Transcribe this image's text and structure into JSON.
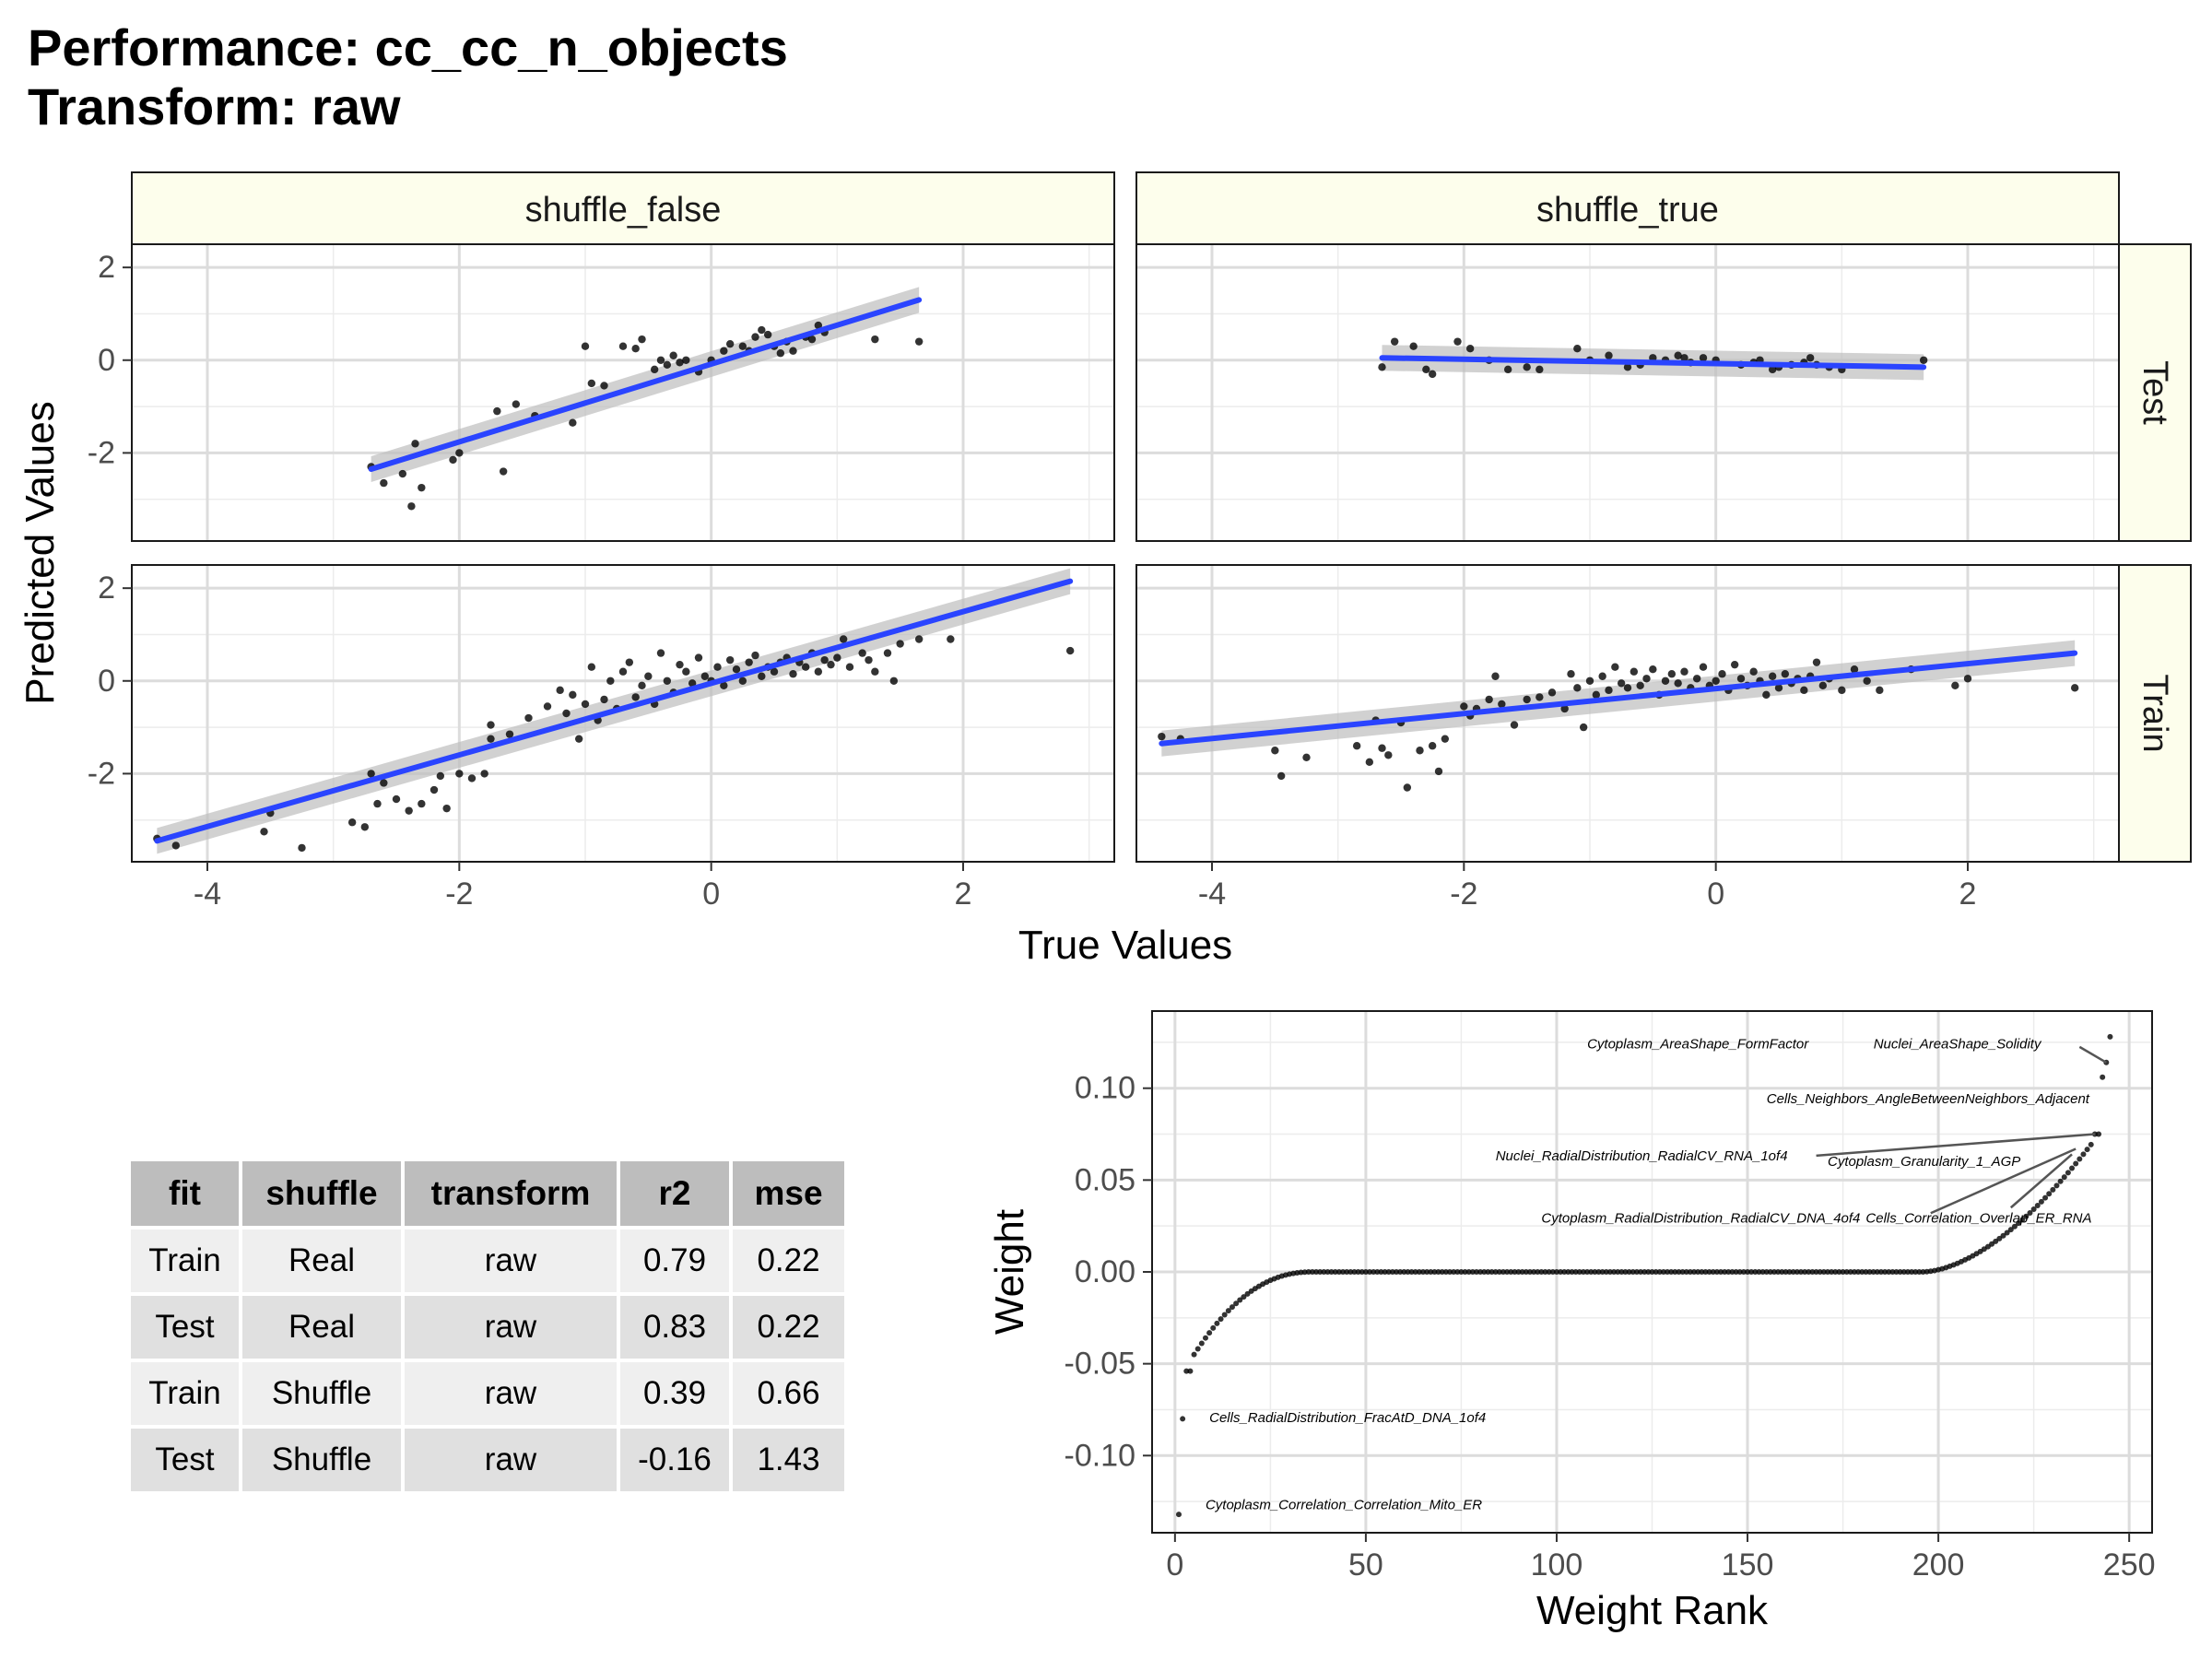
{
  "title": {
    "line1": "Performance: cc_cc_n_objects",
    "line2": "Transform: raw"
  },
  "facet_plot": {
    "xlabel": "True Values",
    "ylabel": "Predicted Values",
    "col_labels": [
      "shuffle_false",
      "shuffle_true"
    ],
    "row_labels": [
      "Test",
      "Train"
    ],
    "x_ticks": [
      -4,
      -2,
      0,
      2
    ],
    "y_ticks": [
      -2,
      0,
      2
    ],
    "strip_fill": "#fdfeec",
    "line_color": "#2a44ff"
  },
  "metrics_table": {
    "columns": [
      "fit",
      "shuffle",
      "transform",
      "r2",
      "mse"
    ],
    "rows": [
      [
        "Train",
        "Real",
        "raw",
        "0.79",
        "0.22"
      ],
      [
        "Test",
        "Real",
        "raw",
        "0.83",
        "0.22"
      ],
      [
        "Train",
        "Shuffle",
        "raw",
        "0.39",
        "0.66"
      ],
      [
        "Test",
        "Shuffle",
        "raw",
        "-0.16",
        "1.43"
      ]
    ]
  },
  "weight_plot": {
    "xlabel": "Weight Rank",
    "ylabel": "Weight",
    "x_ticks": [
      0,
      50,
      100,
      150,
      200,
      250
    ],
    "y_ticks": [
      "-0.10",
      "-0.05",
      "0.00",
      "0.05",
      "0.10"
    ],
    "labels": [
      "Cytoplasm_AreaShape_FormFactor",
      "Nuclei_AreaShape_Solidity",
      "Cells_Neighbors_AngleBetweenNeighbors_Adjacent",
      "Nuclei_RadialDistribution_RadialCV_RNA_1of4",
      "Cytoplasm_Granularity_1_AGP",
      "Cytoplasm_RadialDistribution_RadialCV_DNA_4of4",
      "Cells_Correlation_Overlap_ER_RNA",
      "Cells_RadialDistribution_FracAtD_DNA_1of4",
      "Cytoplasm_Correlation_Correlation_Mito_ER"
    ]
  },
  "chart_data": [
    {
      "type": "scatter",
      "title": "shuffle_false / Test",
      "xlabel": "True Values",
      "ylabel": "Predicted Values",
      "xlim": [
        -4.6,
        3.2
      ],
      "ylim": [
        -3.9,
        2.5
      ],
      "fit_line": {
        "x": [
          -2.7,
          1.65
        ],
        "y": [
          -2.35,
          1.3
        ]
      },
      "points": [
        [
          -2.7,
          -2.3
        ],
        [
          -2.6,
          -2.65
        ],
        [
          -2.45,
          -2.45
        ],
        [
          -2.38,
          -3.15
        ],
        [
          -2.3,
          -2.75
        ],
        [
          -2.35,
          -1.8
        ],
        [
          -2.05,
          -2.15
        ],
        [
          -2.0,
          -2.0
        ],
        [
          -1.65,
          -2.4
        ],
        [
          -1.7,
          -1.1
        ],
        [
          -1.55,
          -0.95
        ],
        [
          -1.4,
          -1.2
        ],
        [
          -1.1,
          -1.35
        ],
        [
          -1.0,
          0.3
        ],
        [
          -0.95,
          -0.5
        ],
        [
          -0.85,
          -0.55
        ],
        [
          -0.7,
          0.3
        ],
        [
          -0.6,
          0.25
        ],
        [
          -0.55,
          0.45
        ],
        [
          -0.45,
          -0.2
        ],
        [
          -0.4,
          0.0
        ],
        [
          -0.35,
          -0.1
        ],
        [
          -0.3,
          0.1
        ],
        [
          -0.25,
          -0.05
        ],
        [
          -0.2,
          0.0
        ],
        [
          -0.1,
          -0.25
        ],
        [
          0.0,
          0.0
        ],
        [
          0.1,
          0.2
        ],
        [
          0.15,
          0.35
        ],
        [
          0.25,
          0.3
        ],
        [
          0.3,
          0.2
        ],
        [
          0.35,
          0.5
        ],
        [
          0.4,
          0.65
        ],
        [
          0.45,
          0.55
        ],
        [
          0.5,
          0.3
        ],
        [
          0.55,
          0.15
        ],
        [
          0.6,
          0.4
        ],
        [
          0.65,
          0.2
        ],
        [
          0.75,
          0.5
        ],
        [
          0.8,
          0.45
        ],
        [
          0.85,
          0.75
        ],
        [
          0.9,
          0.6
        ],
        [
          1.3,
          0.45
        ],
        [
          1.65,
          0.4
        ]
      ]
    },
    {
      "type": "scatter",
      "title": "shuffle_true / Test",
      "xlabel": "True Values",
      "ylabel": "Predicted Values",
      "xlim": [
        -4.6,
        3.2
      ],
      "ylim": [
        -3.9,
        2.5
      ],
      "fit_line": {
        "x": [
          -2.65,
          1.65
        ],
        "y": [
          0.05,
          -0.15
        ]
      },
      "points": [
        [
          -2.65,
          -0.15
        ],
        [
          -2.55,
          0.4
        ],
        [
          -2.4,
          0.3
        ],
        [
          -2.3,
          -0.2
        ],
        [
          -2.25,
          -0.3
        ],
        [
          -2.05,
          0.4
        ],
        [
          -1.95,
          0.25
        ],
        [
          -1.8,
          0.0
        ],
        [
          -1.65,
          -0.2
        ],
        [
          -1.5,
          -0.15
        ],
        [
          -1.4,
          -0.2
        ],
        [
          -1.1,
          0.25
        ],
        [
          -1.0,
          0.0
        ],
        [
          -0.85,
          0.1
        ],
        [
          -0.7,
          -0.15
        ],
        [
          -0.6,
          -0.1
        ],
        [
          -0.5,
          0.05
        ],
        [
          -0.4,
          0.0
        ],
        [
          -0.3,
          0.1
        ],
        [
          -0.25,
          0.05
        ],
        [
          -0.2,
          -0.05
        ],
        [
          -0.1,
          0.05
        ],
        [
          0.0,
          0.0
        ],
        [
          0.2,
          -0.1
        ],
        [
          0.3,
          -0.05
        ],
        [
          0.35,
          0.0
        ],
        [
          0.45,
          -0.2
        ],
        [
          0.5,
          -0.15
        ],
        [
          0.6,
          -0.1
        ],
        [
          0.7,
          -0.05
        ],
        [
          0.75,
          0.05
        ],
        [
          0.8,
          -0.1
        ],
        [
          0.9,
          -0.15
        ],
        [
          1.0,
          -0.2
        ],
        [
          1.65,
          0.0
        ]
      ]
    },
    {
      "type": "scatter",
      "title": "shuffle_false / Train",
      "xlabel": "True Values",
      "ylabel": "Predicted Values",
      "xlim": [
        -4.6,
        3.2
      ],
      "ylim": [
        -3.9,
        2.5
      ],
      "fit_line": {
        "x": [
          -4.4,
          2.85
        ],
        "y": [
          -3.45,
          2.15
        ]
      },
      "points": [
        [
          -4.4,
          -3.4
        ],
        [
          -4.25,
          -3.55
        ],
        [
          -3.5,
          -2.85
        ],
        [
          -3.55,
          -3.25
        ],
        [
          -3.25,
          -3.6
        ],
        [
          -2.85,
          -3.05
        ],
        [
          -2.75,
          -3.15
        ],
        [
          -2.7,
          -2.0
        ],
        [
          -2.65,
          -2.65
        ],
        [
          -2.6,
          -2.2
        ],
        [
          -2.5,
          -2.55
        ],
        [
          -2.4,
          -2.8
        ],
        [
          -2.3,
          -2.65
        ],
        [
          -2.2,
          -2.35
        ],
        [
          -2.15,
          -2.05
        ],
        [
          -2.1,
          -2.75
        ],
        [
          -2.0,
          -2.0
        ],
        [
          -1.9,
          -2.1
        ],
        [
          -1.8,
          -2.0
        ],
        [
          -1.75,
          -0.95
        ],
        [
          -1.75,
          -1.25
        ],
        [
          -1.6,
          -1.15
        ],
        [
          -1.45,
          -0.8
        ],
        [
          -1.3,
          -0.55
        ],
        [
          -1.2,
          -0.2
        ],
        [
          -1.15,
          -0.7
        ],
        [
          -1.1,
          -0.3
        ],
        [
          -1.05,
          -1.25
        ],
        [
          -1.0,
          -0.5
        ],
        [
          -0.95,
          0.3
        ],
        [
          -0.9,
          -0.85
        ],
        [
          -0.85,
          -0.4
        ],
        [
          -0.8,
          0.0
        ],
        [
          -0.75,
          -0.6
        ],
        [
          -0.7,
          0.2
        ],
        [
          -0.65,
          0.4
        ],
        [
          -0.6,
          -0.35
        ],
        [
          -0.55,
          -0.1
        ],
        [
          -0.5,
          0.1
        ],
        [
          -0.45,
          -0.5
        ],
        [
          -0.4,
          0.6
        ],
        [
          -0.35,
          0.0
        ],
        [
          -0.3,
          -0.25
        ],
        [
          -0.25,
          0.35
        ],
        [
          -0.2,
          0.2
        ],
        [
          -0.15,
          -0.05
        ],
        [
          -0.1,
          0.5
        ],
        [
          -0.05,
          0.1
        ],
        [
          0.0,
          0.0
        ],
        [
          0.05,
          0.3
        ],
        [
          0.1,
          -0.1
        ],
        [
          0.15,
          0.45
        ],
        [
          0.2,
          0.25
        ],
        [
          0.25,
          0.0
        ],
        [
          0.3,
          0.4
        ],
        [
          0.35,
          0.55
        ],
        [
          0.4,
          0.1
        ],
        [
          0.45,
          0.3
        ],
        [
          0.5,
          0.2
        ],
        [
          0.55,
          0.4
        ],
        [
          0.6,
          0.5
        ],
        [
          0.65,
          0.15
        ],
        [
          0.7,
          0.4
        ],
        [
          0.75,
          0.3
        ],
        [
          0.8,
          0.6
        ],
        [
          0.85,
          0.2
        ],
        [
          0.9,
          0.45
        ],
        [
          0.95,
          0.35
        ],
        [
          1.0,
          0.5
        ],
        [
          1.05,
          0.9
        ],
        [
          1.1,
          0.3
        ],
        [
          1.2,
          0.6
        ],
        [
          1.25,
          0.45
        ],
        [
          1.3,
          0.2
        ],
        [
          1.4,
          0.6
        ],
        [
          1.45,
          0.0
        ],
        [
          1.5,
          0.8
        ],
        [
          1.65,
          0.9
        ],
        [
          1.9,
          0.9
        ],
        [
          2.85,
          0.65
        ]
      ]
    },
    {
      "type": "scatter",
      "title": "shuffle_true / Train",
      "xlabel": "True Values",
      "ylabel": "Predicted Values",
      "xlim": [
        -4.6,
        3.2
      ],
      "ylim": [
        -3.9,
        2.5
      ],
      "fit_line": {
        "x": [
          -4.4,
          2.85
        ],
        "y": [
          -1.35,
          0.6
        ]
      },
      "points": [
        [
          -4.4,
          -1.2
        ],
        [
          -4.25,
          -1.25
        ],
        [
          -3.5,
          -1.5
        ],
        [
          -3.45,
          -2.05
        ],
        [
          -3.25,
          -1.65
        ],
        [
          -2.85,
          -1.4
        ],
        [
          -2.75,
          -1.75
        ],
        [
          -2.7,
          -0.85
        ],
        [
          -2.65,
          -1.45
        ],
        [
          -2.6,
          -1.6
        ],
        [
          -2.5,
          -0.9
        ],
        [
          -2.45,
          -2.3
        ],
        [
          -2.35,
          -1.5
        ],
        [
          -2.25,
          -1.4
        ],
        [
          -2.2,
          -1.95
        ],
        [
          -2.15,
          -1.25
        ],
        [
          -2.0,
          -0.55
        ],
        [
          -1.95,
          -0.75
        ],
        [
          -1.9,
          -0.6
        ],
        [
          -1.8,
          -0.4
        ],
        [
          -1.75,
          0.1
        ],
        [
          -1.7,
          -0.5
        ],
        [
          -1.6,
          -0.95
        ],
        [
          -1.5,
          -0.4
        ],
        [
          -1.4,
          -0.35
        ],
        [
          -1.3,
          -0.25
        ],
        [
          -1.2,
          -0.6
        ],
        [
          -1.15,
          0.15
        ],
        [
          -1.1,
          -0.15
        ],
        [
          -1.05,
          -1.0
        ],
        [
          -1.0,
          0.0
        ],
        [
          -0.95,
          -0.3
        ],
        [
          -0.9,
          0.1
        ],
        [
          -0.85,
          -0.2
        ],
        [
          -0.8,
          0.3
        ],
        [
          -0.75,
          -0.05
        ],
        [
          -0.7,
          -0.15
        ],
        [
          -0.65,
          0.2
        ],
        [
          -0.6,
          -0.1
        ],
        [
          -0.55,
          0.05
        ],
        [
          -0.5,
          0.25
        ],
        [
          -0.45,
          -0.3
        ],
        [
          -0.4,
          0.0
        ],
        [
          -0.35,
          0.15
        ],
        [
          -0.3,
          -0.05
        ],
        [
          -0.25,
          0.2
        ],
        [
          -0.2,
          -0.15
        ],
        [
          -0.15,
          0.05
        ],
        [
          -0.1,
          0.3
        ],
        [
          -0.05,
          -0.1
        ],
        [
          0.0,
          0.0
        ],
        [
          0.05,
          0.15
        ],
        [
          0.1,
          -0.2
        ],
        [
          0.15,
          0.35
        ],
        [
          0.2,
          0.05
        ],
        [
          0.25,
          -0.1
        ],
        [
          0.3,
          0.2
        ],
        [
          0.35,
          0.0
        ],
        [
          0.4,
          -0.3
        ],
        [
          0.45,
          0.1
        ],
        [
          0.5,
          -0.15
        ],
        [
          0.55,
          0.15
        ],
        [
          0.6,
          -0.05
        ],
        [
          0.65,
          0.05
        ],
        [
          0.7,
          -0.2
        ],
        [
          0.75,
          0.1
        ],
        [
          0.8,
          0.4
        ],
        [
          0.85,
          -0.1
        ],
        [
          0.9,
          0.05
        ],
        [
          1.0,
          -0.2
        ],
        [
          1.1,
          0.25
        ],
        [
          1.2,
          0.0
        ],
        [
          1.3,
          -0.2
        ],
        [
          1.55,
          0.25
        ],
        [
          1.9,
          -0.1
        ],
        [
          2.0,
          0.05
        ],
        [
          2.85,
          -0.15
        ]
      ]
    },
    {
      "type": "scatter",
      "title": "",
      "xlabel": "Weight Rank",
      "ylabel": "Weight",
      "xlim": [
        -6,
        256
      ],
      "ylim": [
        -0.142,
        0.142
      ],
      "x": "rank 1..245",
      "segments": [
        {
          "from": 1,
          "to": 36,
          "y_start": -0.132,
          "y_end": 0.0,
          "shape": "rising"
        },
        {
          "from": 36,
          "to": 196,
          "y": 0.0
        },
        {
          "from": 196,
          "to": 242,
          "y_start": 0.0,
          "y_end": 0.075,
          "shape": "accelerating"
        }
      ],
      "points": [
        [
          1,
          -0.132
        ],
        [
          2,
          -0.08
        ],
        [
          3,
          -0.054
        ],
        [
          4,
          -0.054
        ],
        [
          241,
          0.075
        ],
        [
          242,
          0.075
        ],
        [
          243,
          0.106
        ],
        [
          244,
          0.114
        ],
        [
          245,
          0.128
        ]
      ]
    }
  ]
}
